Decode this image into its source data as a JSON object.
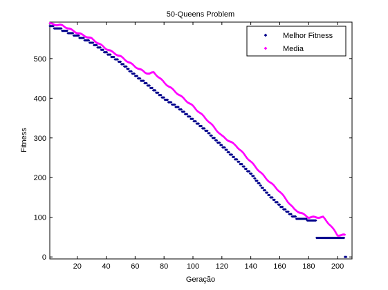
{
  "chart_data": {
    "type": "scatter",
    "title": "50-Queens Problem",
    "xlabel": "Geração",
    "ylabel": "Fitness",
    "xlim": [
      1,
      210
    ],
    "ylim": [
      -5,
      592
    ],
    "xticks": [
      20,
      40,
      60,
      80,
      100,
      120,
      140,
      160,
      180,
      200
    ],
    "yticks": [
      0,
      100,
      200,
      300,
      400,
      500
    ],
    "legend_position": "top-right",
    "grid": false,
    "series": [
      {
        "name": "Melhor Fitness",
        "color": "#00008b",
        "marker": "diamond",
        "key_x": [
          1,
          10,
          20,
          30,
          40,
          50,
          60,
          70,
          80,
          90,
          100,
          110,
          120,
          130,
          140,
          150,
          160,
          170,
          180,
          187,
          195,
          203,
          206
        ],
        "key_y": [
          582,
          572,
          557,
          540,
          515,
          490,
          458,
          430,
          400,
          375,
          345,
          315,
          280,
          245,
          210,
          165,
          130,
          100,
          92,
          48,
          48,
          48,
          0
        ]
      },
      {
        "name": "Media",
        "color": "#ff00ff",
        "marker": "diamond",
        "key_x": [
          1,
          10,
          20,
          30,
          40,
          50,
          60,
          67,
          70,
          73,
          80,
          90,
          100,
          110,
          120,
          130,
          140,
          150,
          160,
          170,
          180,
          190,
          195,
          200,
          205
        ],
        "key_y": [
          588,
          583,
          565,
          550,
          525,
          505,
          480,
          465,
          462,
          465,
          440,
          410,
          380,
          345,
          305,
          280,
          240,
          200,
          165,
          120,
          100,
          100,
          80,
          55,
          55
        ]
      }
    ]
  }
}
